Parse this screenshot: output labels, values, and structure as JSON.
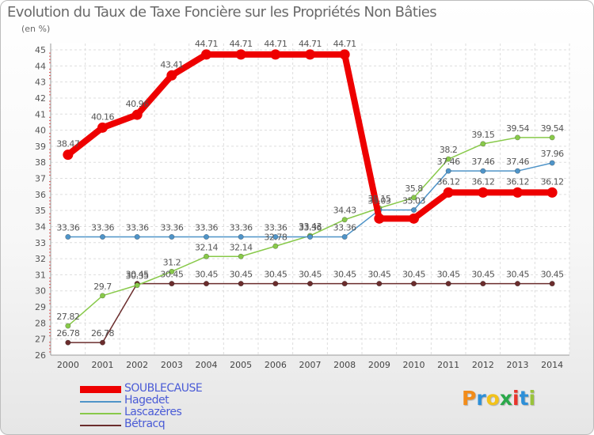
{
  "chart_data": {
    "type": "line",
    "title": "Evolution du Taux de Taxe Foncière sur les Propriétés Non Bâties",
    "ylabel": "(en %)",
    "xlabel": "",
    "categories": [
      "2000",
      "2001",
      "2002",
      "2003",
      "2004",
      "2005",
      "2006",
      "2007",
      "2008",
      "2009",
      "2010",
      "2011",
      "2012",
      "2013",
      "2014"
    ],
    "ylim": [
      26,
      45
    ],
    "yticks": [
      "26",
      "27",
      "28",
      "29",
      "30",
      "31",
      "32",
      "33",
      "34",
      "35",
      "36",
      "37",
      "38",
      "39",
      "40",
      "41",
      "42",
      "43",
      "44",
      "45"
    ],
    "grid": true,
    "series": [
      {
        "name": "SOUBLECAUSE",
        "color": "#ee0000",
        "values": [
          38.47,
          40.16,
          40.96,
          43.41,
          44.71,
          44.71,
          44.71,
          44.71,
          44.71,
          34.5,
          34.5,
          36.12,
          36.12,
          36.12,
          36.12
        ],
        "labels": [
          "38.47",
          "40.16",
          "40.96",
          "43.41",
          "44.71",
          "44.71",
          "44.71",
          "44.71",
          "44.71",
          "",
          "",
          "36.12",
          "36.12",
          "36.12",
          "36.12"
        ]
      },
      {
        "name": "Hagedet",
        "color": "#4f94c8",
        "values": [
          33.36,
          33.36,
          33.36,
          33.36,
          33.36,
          33.36,
          33.36,
          33.36,
          33.36,
          35.03,
          35.03,
          37.46,
          37.46,
          37.46,
          37.96
        ],
        "labels": [
          "33.36",
          "33.36",
          "33.36",
          "33.36",
          "33.36",
          "33.36",
          "33.36",
          "33.36",
          "33.36",
          "35.03",
          "35.03",
          "37.46",
          "37.46",
          "37.46",
          "37.96"
        ]
      },
      {
        "name": "Lascazères",
        "color": "#88c94a",
        "values": [
          27.82,
          29.7,
          30.35,
          31.2,
          32.14,
          32.14,
          32.78,
          33.43,
          34.43,
          35.15,
          35.8,
          38.2,
          39.15,
          39.54,
          39.54
        ],
        "labels": [
          "27.82",
          "29.7",
          "30.35",
          "31.2",
          "32.14",
          "32.14",
          "32.78",
          "33.43",
          "34.43",
          "35.15",
          "35.8",
          "38.2",
          "39.15",
          "39.54",
          "39.54"
        ]
      },
      {
        "name": "Bétracq",
        "color": "#6b2d2d",
        "values": [
          26.78,
          26.78,
          30.45,
          30.45,
          30.45,
          30.45,
          30.45,
          30.45,
          30.45,
          30.45,
          30.45,
          30.45,
          30.45,
          30.45,
          30.45
        ],
        "labels": [
          "26.78",
          "26.78",
          "30.45",
          "30.45",
          "30.45",
          "30.45",
          "30.45",
          "30.45",
          "30.45",
          "30.45",
          "30.45",
          "30.45",
          "30.45",
          "30.45",
          "30.45"
        ]
      }
    ]
  },
  "logo": {
    "letters": [
      "P",
      "r",
      "o",
      "x",
      "i",
      "t",
      "i"
    ],
    "colors": [
      "#f28c1a",
      "#2d8fd8",
      "#f2c21a",
      "#2aa84a",
      "#e8342b",
      "#2d8fd8",
      "#9ac33b"
    ]
  }
}
